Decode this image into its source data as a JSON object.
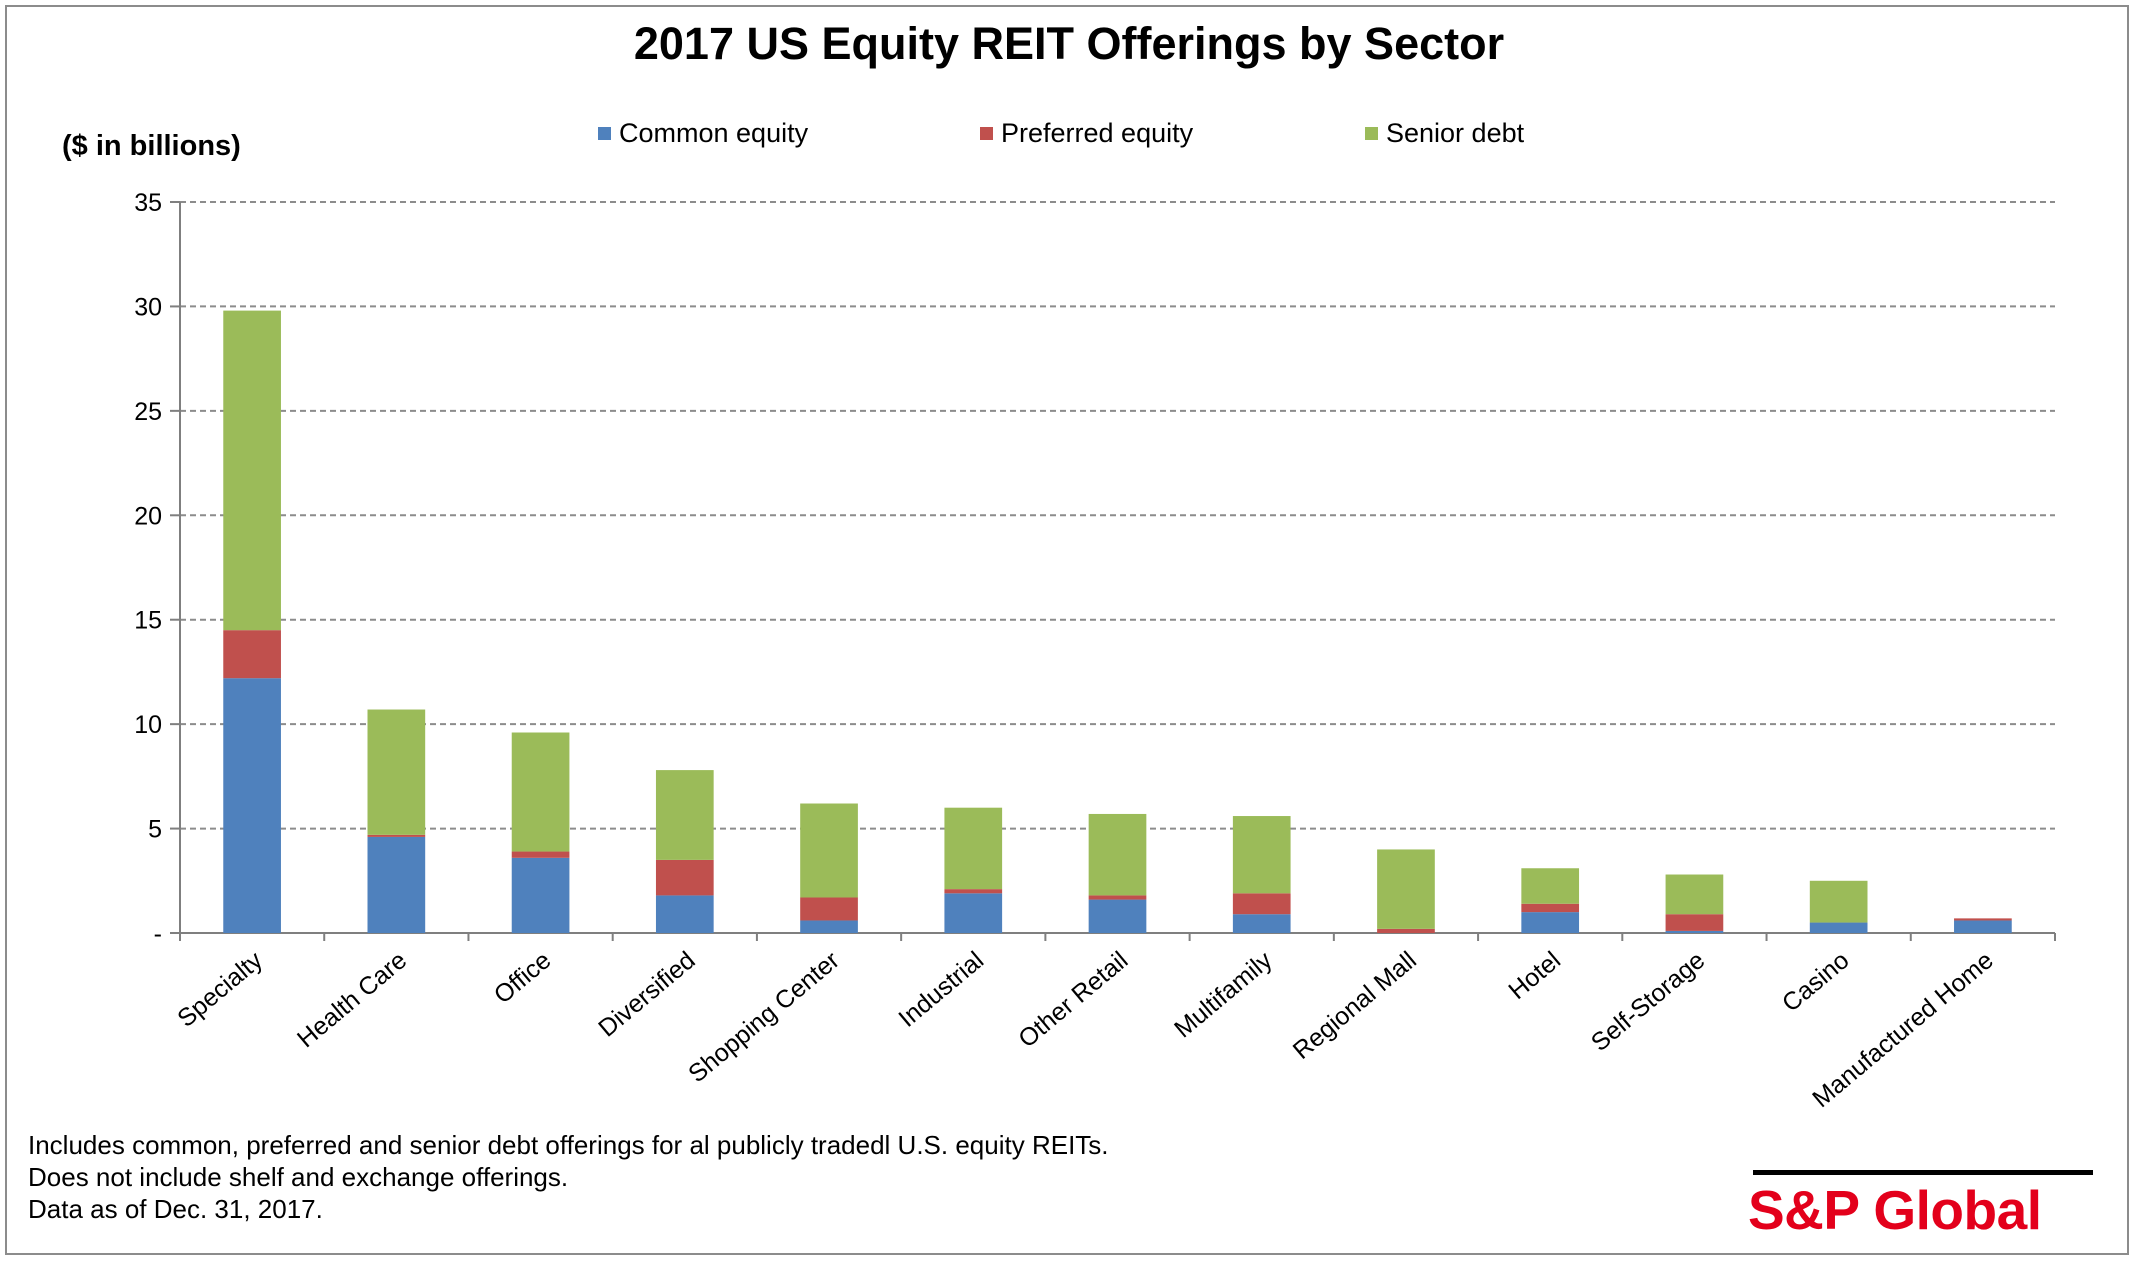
{
  "chart_data": {
    "type": "bar",
    "stacked": true,
    "title": "2017 US Equity REIT Offerings by Sector",
    "ylabel": "($ in billions)",
    "xlabel": "",
    "ylim": [
      0,
      35
    ],
    "yticks": [
      0,
      5,
      10,
      15,
      20,
      25,
      30,
      35
    ],
    "ytick_labels": [
      "-",
      "5",
      "10",
      "15",
      "20",
      "25",
      "30",
      "35"
    ],
    "grid": true,
    "legend_position": "top",
    "categories": [
      "Specialty",
      "Health Care",
      "Office",
      "Diversified",
      "Shopping Center",
      "Industrial",
      "Other Retail",
      "Multifamily",
      "Regional Mall",
      "Hotel",
      "Self-Storage",
      "Casino",
      "Manufactured Home"
    ],
    "series": [
      {
        "name": "Common equity",
        "color": "#4f81bd",
        "values": [
          12.2,
          4.6,
          3.6,
          1.8,
          0.6,
          1.9,
          1.6,
          0.9,
          0.0,
          1.0,
          0.1,
          0.5,
          0.6
        ]
      },
      {
        "name": "Preferred equity",
        "color": "#c0504d",
        "values": [
          2.3,
          0.1,
          0.3,
          1.7,
          1.1,
          0.2,
          0.2,
          1.0,
          0.2,
          0.4,
          0.8,
          0.0,
          0.1
        ]
      },
      {
        "name": "Senior debt",
        "color": "#9bbb59",
        "values": [
          15.3,
          6.0,
          5.7,
          4.3,
          4.5,
          3.9,
          3.9,
          3.7,
          3.8,
          1.7,
          1.9,
          2.0,
          0.0
        ]
      }
    ]
  },
  "footnotes": [
    "Includes common, preferred and senior debt offerings for al publicly tradedl U.S. equity REITs.",
    "Does not include shelf and exchange offerings.",
    "Data as of Dec. 31, 2017."
  ],
  "logo_text": "S&P Global"
}
